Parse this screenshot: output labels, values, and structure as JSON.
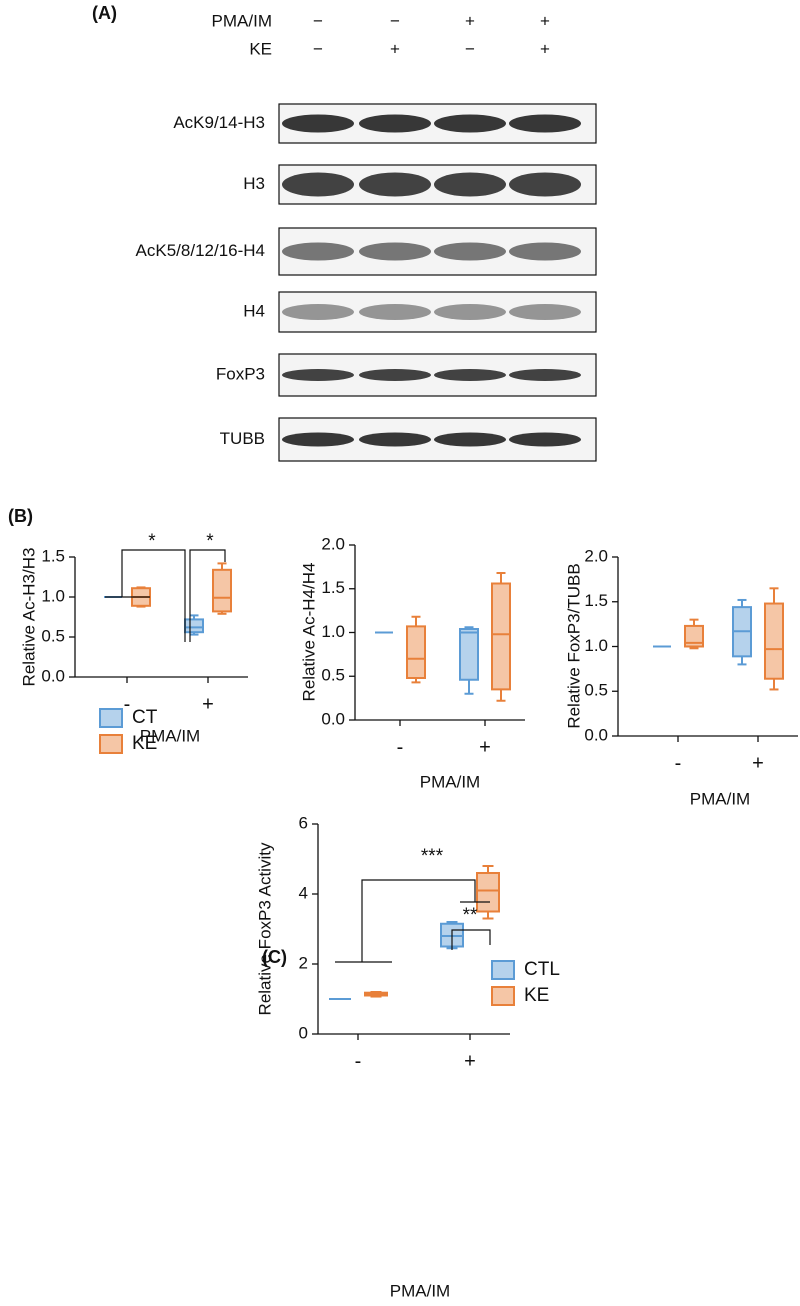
{
  "blot": {
    "label": "(A)",
    "treatments": [
      {
        "name": "PMA/IM",
        "signs": [
          "−",
          "−",
          "+",
          "+"
        ]
      },
      {
        "name": "KE",
        "signs": [
          "−",
          "+",
          "−",
          "+"
        ]
      }
    ],
    "rows": [
      "AcK9/14-H3",
      "H3",
      "AcK5/8/12/16-H4",
      "H4",
      "FoxP3",
      "TUBB"
    ]
  },
  "panel_b_label": "(B)",
  "panel_c_label": "(C)",
  "chart_data": [
    {
      "type": "box",
      "ylabel": "Relative Ac-H3/H3",
      "xlabel": "PMA/IM",
      "categories": [
        "-",
        "+"
      ],
      "ylim": [
        0,
        1.5
      ],
      "yticks": [
        {
          "value": 0,
          "label": "0.0"
        },
        {
          "value": 0.5,
          "label": "0.5"
        },
        {
          "value": 1,
          "label": "1.0"
        },
        {
          "value": 1.5,
          "label": "1.5"
        }
      ],
      "legend": "lower-left",
      "annotations": [
        "*",
        "*"
      ],
      "series": [
        {
          "name": "CT",
          "color": "#5b9bd5",
          "values": [
            [
              1,
              1,
              1,
              1,
              1
            ],
            [
              0.53,
              0.56,
              0.62,
              0.72,
              0.77
            ]
          ]
        },
        {
          "name": "KE",
          "color": "#e8803a",
          "values": [
            [
              0.88,
              0.89,
              1.0,
              1.11,
              1.12
            ],
            [
              0.79,
              0.82,
              0.99,
              1.34,
              1.42
            ]
          ]
        }
      ]
    },
    {
      "type": "box",
      "ylabel": "Relative Ac-H4/H4",
      "xlabel": "PMA/IM",
      "categories": [
        "-",
        "+"
      ],
      "ylim": [
        0,
        2
      ],
      "yticks": [
        {
          "value": 0,
          "label": "0.0"
        },
        {
          "value": 0.5,
          "label": "0.5"
        },
        {
          "value": 1,
          "label": "1.0"
        },
        {
          "value": 1.5,
          "label": "1.5"
        },
        {
          "value": 2,
          "label": "2.0"
        }
      ],
      "series": [
        {
          "color": "#5b9bd5",
          "values": [
            [
              1,
              1,
              1,
              1,
              1
            ],
            [
              0.3,
              0.46,
              1.0,
              1.04,
              1.06
            ]
          ]
        },
        {
          "color": "#e8803a",
          "values": [
            [
              0.43,
              0.48,
              0.7,
              1.07,
              1.18
            ],
            [
              0.22,
              0.35,
              0.98,
              1.56,
              1.68
            ]
          ]
        }
      ]
    },
    {
      "type": "box",
      "ylabel": "Relative FoxP3/TUBB",
      "xlabel": "PMA/IM",
      "categories": [
        "-",
        "+"
      ],
      "ylim": [
        0,
        2
      ],
      "yticks": [
        {
          "value": 0,
          "label": "0.0"
        },
        {
          "value": 0.5,
          "label": "0.5"
        },
        {
          "value": 1,
          "label": "1.0"
        },
        {
          "value": 1.5,
          "label": "1.5"
        },
        {
          "value": 2,
          "label": "2.0"
        }
      ],
      "series": [
        {
          "color": "#5b9bd5",
          "values": [
            [
              1,
              1,
              1,
              1,
              1
            ],
            [
              0.8,
              0.89,
              1.17,
              1.44,
              1.52
            ]
          ]
        },
        {
          "color": "#e8803a",
          "values": [
            [
              0.98,
              1.0,
              1.04,
              1.23,
              1.3
            ],
            [
              0.52,
              0.64,
              0.97,
              1.48,
              1.65
            ]
          ]
        }
      ]
    },
    {
      "type": "box",
      "ylabel": "Relative FoxP3 Activity",
      "xlabel": "PMA/IM",
      "categories": [
        "-",
        "+"
      ],
      "ylim": [
        0,
        6
      ],
      "yticks": [
        0,
        2,
        4,
        6
      ],
      "legend": "lower-right",
      "annotations": [
        "***",
        "**"
      ],
      "series": [
        {
          "name": "CTL",
          "color": "#5b9bd5",
          "values": [
            [
              1,
              1,
              1,
              1,
              1
            ],
            [
              2.45,
              2.5,
              2.8,
              3.15,
              3.2
            ]
          ]
        },
        {
          "name": "KE",
          "color": "#e8803a",
          "values": [
            [
              1.07,
              1.1,
              1.15,
              1.18,
              1.2
            ],
            [
              3.3,
              3.5,
              4.1,
              4.6,
              4.8
            ]
          ]
        }
      ]
    }
  ]
}
